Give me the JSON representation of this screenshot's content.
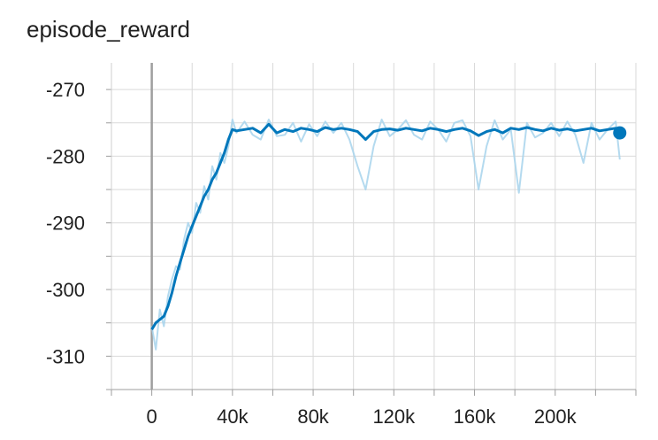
{
  "chart_data": {
    "type": "line",
    "title": "episode_reward",
    "xlabel": "",
    "ylabel": "",
    "xlim": [
      -20000,
      240000
    ],
    "ylim": [
      -315,
      -266
    ],
    "xticks": [
      0,
      40000,
      80000,
      120000,
      160000,
      200000
    ],
    "xtick_labels": [
      "0",
      "40k",
      "80k",
      "120k",
      "160k",
      "200k"
    ],
    "yticks": [
      -270,
      -280,
      -290,
      -300,
      -310
    ],
    "ytick_labels": [
      "-270",
      "-280",
      "-290",
      "-300",
      "-310"
    ],
    "grid": true,
    "colors": {
      "smoothed": "#0077bb",
      "raw": "#a7d3ec",
      "zero_line": "#9e9e9e",
      "grid": "#d9d9d9"
    },
    "series": [
      {
        "x": [
          0,
          2000,
          4000,
          6000,
          8000,
          10000,
          12000,
          14000,
          16000,
          18000,
          20000,
          22000,
          24000,
          26000,
          28000,
          30000,
          32000,
          34000,
          36000,
          38000,
          40000,
          42000,
          46000,
          50000,
          54000,
          58000,
          62000,
          66000,
          70000,
          74000,
          78000,
          82000,
          86000,
          90000,
          94000,
          98000,
          102000,
          106000,
          110000,
          114000,
          118000,
          122000,
          126000,
          130000,
          134000,
          138000,
          142000,
          146000,
          150000,
          154000,
          158000,
          162000,
          166000,
          170000,
          174000,
          178000,
          182000,
          186000,
          190000,
          194000,
          198000,
          202000,
          206000,
          210000,
          214000,
          218000,
          222000,
          226000,
          230000,
          232000
        ],
        "values": [
          -306.0,
          -305.0,
          -304.5,
          -304.0,
          -302.5,
          -300.5,
          -298.0,
          -296.0,
          -294.0,
          -292.0,
          -290.5,
          -289.0,
          -287.5,
          -286.0,
          -285.0,
          -283.5,
          -282.5,
          -281.0,
          -279.5,
          -277.5,
          -276.0,
          -276.2,
          -276.0,
          -275.8,
          -276.5,
          -275.2,
          -276.5,
          -276.0,
          -276.3,
          -275.8,
          -276.0,
          -276.3,
          -275.7,
          -276.0,
          -275.8,
          -276.0,
          -276.3,
          -277.5,
          -276.3,
          -276.0,
          -275.9,
          -276.1,
          -275.8,
          -276.0,
          -276.2,
          -275.8,
          -276.0,
          -276.3,
          -276.0,
          -275.8,
          -276.2,
          -276.9,
          -276.3,
          -276.0,
          -276.5,
          -275.8,
          -276.0,
          -275.7,
          -276.0,
          -276.2,
          -275.8,
          -276.1,
          -275.9,
          -276.2,
          -276.0,
          -275.8,
          -276.2,
          -276.0,
          -275.8,
          -276.5
        ]
      },
      {
        "x": [
          0,
          2000,
          4000,
          6000,
          8000,
          10000,
          12000,
          14000,
          16000,
          18000,
          20000,
          22000,
          24000,
          26000,
          28000,
          30000,
          32000,
          34000,
          36000,
          38000,
          40000,
          42000,
          46000,
          50000,
          54000,
          58000,
          62000,
          66000,
          70000,
          74000,
          78000,
          82000,
          86000,
          90000,
          94000,
          98000,
          102000,
          106000,
          110000,
          114000,
          118000,
          122000,
          126000,
          130000,
          134000,
          138000,
          142000,
          146000,
          150000,
          154000,
          158000,
          162000,
          166000,
          170000,
          174000,
          178000,
          182000,
          186000,
          190000,
          194000,
          198000,
          202000,
          206000,
          210000,
          214000,
          218000,
          222000,
          226000,
          230000,
          232000
        ],
        "values": [
          -305.5,
          -309.0,
          -303.0,
          -305.5,
          -301.0,
          -298.5,
          -296.5,
          -297.0,
          -292.5,
          -290.0,
          -291.5,
          -287.0,
          -288.5,
          -284.5,
          -286.5,
          -281.5,
          -283.5,
          -279.5,
          -281.0,
          -278.5,
          -274.5,
          -276.5,
          -274.8,
          -276.8,
          -277.5,
          -274.5,
          -277.0,
          -276.8,
          -275.0,
          -277.8,
          -275.2,
          -277.0,
          -274.8,
          -276.5,
          -275.0,
          -277.5,
          -281.5,
          -285.0,
          -278.5,
          -274.5,
          -277.0,
          -276.0,
          -274.6,
          -276.8,
          -277.5,
          -274.8,
          -276.0,
          -277.8,
          -275.0,
          -274.6,
          -277.0,
          -285.0,
          -278.5,
          -274.6,
          -277.5,
          -276.0,
          -285.5,
          -275.0,
          -277.2,
          -276.5,
          -275.0,
          -277.0,
          -274.8,
          -276.8,
          -281.0,
          -275.0,
          -277.5,
          -276.0,
          -274.8,
          -280.5
        ]
      }
    ],
    "last_point": {
      "x": 232000,
      "value": -276.5
    }
  }
}
